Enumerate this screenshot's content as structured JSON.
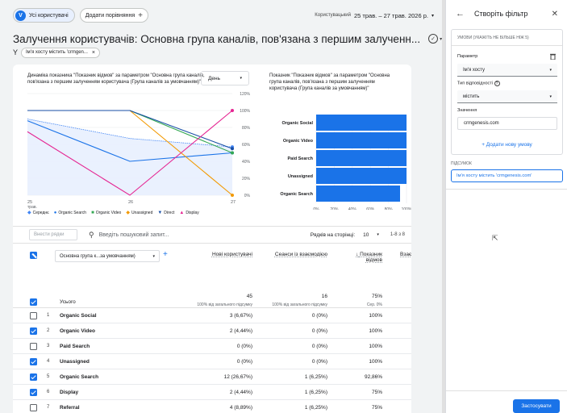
{
  "topbar": {
    "segment_badge": "V",
    "segment_label": "Усі користувачі",
    "compare_label": "Додати порівняння",
    "compare_plus": "+",
    "date_prefix": "Користувацький",
    "date_range": "25 трав. – 27 трав. 2026 р.",
    "date_caret": "▾"
  },
  "header": {
    "title": "Залучення користувачів: Основна група каналів, пов'язана з першим залученн...",
    "status_check": "✓",
    "status_caret": "▾",
    "icons": [
      "report-icon",
      "compare-icon",
      "insights-icon",
      "share-icon",
      "trend-icon"
    ]
  },
  "filter": {
    "funnel": "Y",
    "chip_label": "Ім'я хосту містить 'crmgen...",
    "chip_close": "×"
  },
  "line_chart": {
    "title": "Динаміка показника \"Показник відмов\" за параметром \"Основна група каналів, пов'язана з першим залученням користувача (Група каналів за умовчанням)\"",
    "granularity": "День",
    "caret": "▾",
    "x_labels": [
      "25",
      "26",
      "27"
    ],
    "x_sublabel": "трав.",
    "y_labels": [
      "120%",
      "100%",
      "80%",
      "60%",
      "40%",
      "20%",
      "0%"
    ]
  },
  "bar_chart": {
    "title": "Показник \"Показник відмов\" за параметром \"Основна група каналів, пов'язана з першим залученням користувача (Група каналів за умовчанням)\"",
    "x_labels": [
      "0%",
      "20%",
      "40%",
      "60%",
      "80%",
      "100%"
    ]
  },
  "chart_data": [
    {
      "type": "line",
      "title": "Динаміка показника \"Показник відмов\" за параметром \"Основна група каналів, пов'язана з першим залученням користувача (Група каналів за умовчанням)\"",
      "x": [
        "25 трав.",
        "26",
        "27"
      ],
      "ylim": [
        0,
        120
      ],
      "series": [
        {
          "name": "Середнє",
          "color": "#4285f4",
          "values": [
            90,
            67,
            57
          ]
        },
        {
          "name": "Organic Search",
          "color": "#1a73e8",
          "values": [
            88,
            40,
            50
          ]
        },
        {
          "name": "Organic Video",
          "color": "#34a853",
          "values": [
            100,
            100,
            50
          ]
        },
        {
          "name": "Unassigned",
          "color": "#f29900",
          "values": [
            100,
            100,
            0
          ]
        },
        {
          "name": "Direct",
          "color": "#174ea6",
          "values": [
            100,
            100,
            55
          ]
        },
        {
          "name": "Display",
          "color": "#e52592",
          "values": [
            75,
            0,
            100
          ]
        }
      ]
    },
    {
      "type": "bar",
      "title": "Показник \"Показник відмов\" за параметром \"Основна група каналів, пов'язана з першим залученням користувача (Група каналів за умовчанням)\"",
      "categories": [
        "Organic Social",
        "Organic Video",
        "Paid Search",
        "Unassigned",
        "Organic Search"
      ],
      "values": [
        100,
        100,
        100,
        100,
        92.86
      ],
      "xlim": [
        0,
        100
      ]
    }
  ],
  "legend": [
    {
      "label": "Середнє",
      "color": "#4285f4",
      "shape": "◆"
    },
    {
      "label": "Organic Search",
      "color": "#1a73e8",
      "shape": "●"
    },
    {
      "label": "Organic Video",
      "color": "#34a853",
      "shape": "■"
    },
    {
      "label": "Unassigned",
      "color": "#f29900",
      "shape": "◆"
    },
    {
      "label": "Direct",
      "color": "#174ea6",
      "shape": "▼"
    },
    {
      "label": "Display",
      "color": "#e52592",
      "shape": "▲"
    }
  ],
  "table_toolbar": {
    "rows_placeholder": "Внести рядки",
    "search_placeholder": "Введіть пошуковий запит...",
    "rows_per_page_label": "Рядків на сторінці:",
    "rows_per_page": "10",
    "range": "1-8 з 8"
  },
  "table": {
    "dimension": "Основна група к...за умовчанням)",
    "columns": [
      "Нові користувачі",
      "Сеанси із взаємодією",
      "Показник відмов",
      "Взаємодія"
    ],
    "sort_arrow": "↓",
    "totals_label": "Усього",
    "totals": [
      "45",
      "16",
      "75%"
    ],
    "totals_sub": [
      "100% від загального підсумку",
      "100% від загального підсумку",
      "Сер. 0%"
    ],
    "rows": [
      {
        "n": "1",
        "name": "Organic Social",
        "c1": "3 (6,67%)",
        "c2": "0 (0%)",
        "c3": "100%",
        "checked": false
      },
      {
        "n": "2",
        "name": "Organic Video",
        "c1": "2 (4,44%)",
        "c2": "0 (0%)",
        "c3": "100%",
        "checked": true
      },
      {
        "n": "3",
        "name": "Paid Search",
        "c1": "0 (0%)",
        "c2": "0 (0%)",
        "c3": "100%",
        "checked": false
      },
      {
        "n": "4",
        "name": "Unassigned",
        "c1": "0 (0%)",
        "c2": "0 (0%)",
        "c3": "100%",
        "checked": true
      },
      {
        "n": "5",
        "name": "Organic Search",
        "c1": "12 (26,67%)",
        "c2": "1 (6,25%)",
        "c3": "92,86%",
        "checked": true
      },
      {
        "n": "6",
        "name": "Display",
        "c1": "2 (4,44%)",
        "c2": "1 (6,25%)",
        "c3": "75%",
        "checked": true
      },
      {
        "n": "7",
        "name": "Referral",
        "c1": "4 (8,89%)",
        "c2": "1 (6,25%)",
        "c3": "75%",
        "checked": false
      }
    ]
  },
  "panel": {
    "title": "Створіть фільтр",
    "back": "←",
    "close": "✕",
    "conditions_header": "УМОВИ (УКАЖІТЬ НЕ БІЛЬШЕ НІЖ 5)",
    "param_label": "Параметр",
    "param_value": "Ім'я хосту",
    "match_label": "Тип відповідності",
    "match_value": "містить",
    "value_label": "Значення",
    "value": "crmgenesis.com",
    "add_condition": "+ Додати нову умову",
    "summary_label": "ПІДСУМОК",
    "summary": "Ім'я хосту містить 'crmgenesis.com'",
    "apply": "Застосувати",
    "trash": "🗑",
    "help": "?",
    "caret": "▾"
  }
}
